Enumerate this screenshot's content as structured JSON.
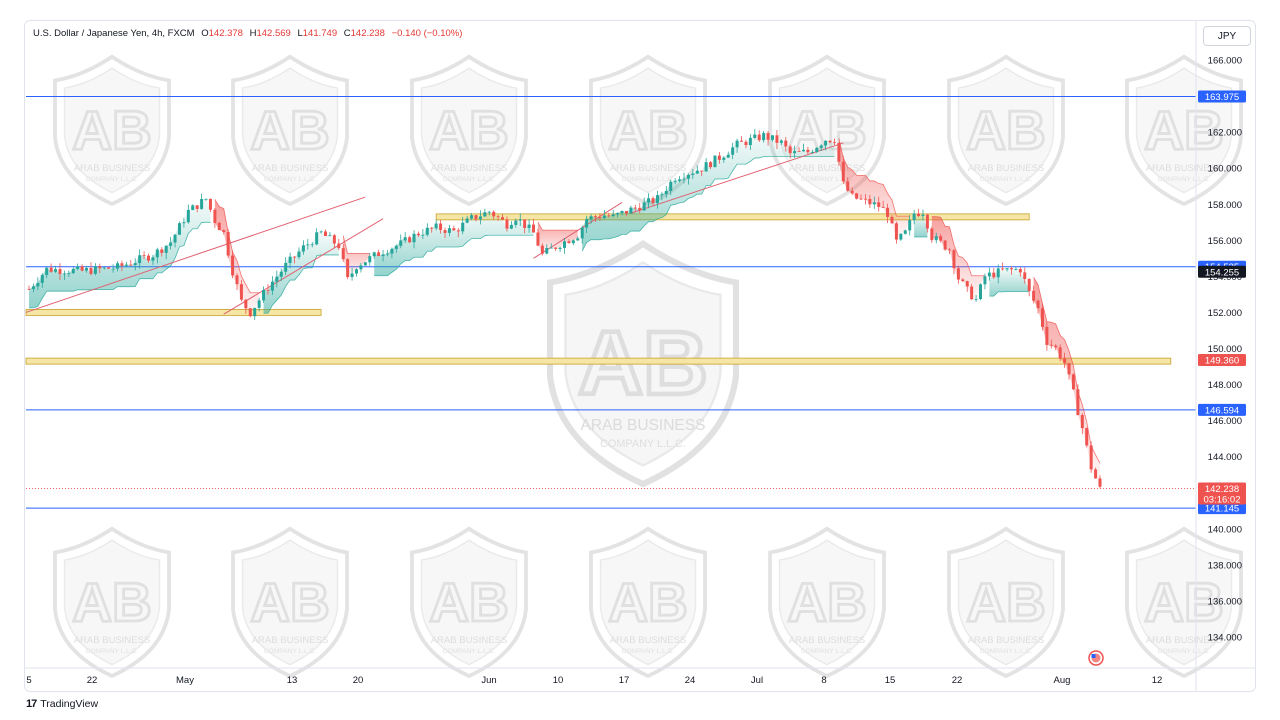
{
  "header": {
    "symbol_label": "U.S. Dollar / Japanese Yen, 4h, FXCM",
    "open_key": "O",
    "open": "142.378",
    "high_key": "H",
    "high": "142.569",
    "low_key": "L",
    "low": "141.749",
    "close_key": "C",
    "close": "142.238",
    "change": "−0.140 (−0.10%)"
  },
  "currency_button": "JPY",
  "countdown": "03:16:02",
  "branding": {
    "logo": "17",
    "text": "TradingView"
  },
  "watermark": {
    "line1": "ARAB BUSINESS",
    "line2": "COMPANY L.L.C."
  },
  "colors": {
    "bull": "#26a69a",
    "bear": "#ef5350",
    "blue_line": "#2962ff",
    "zone_fill": "#f5e6a6",
    "zone_border": "#c9a227",
    "channel": "#e06070"
  },
  "chart_data": {
    "type": "candlestick",
    "title": "U.S. Dollar / Japanese Yen, 4h, FXCM",
    "yaxis": {
      "min": 132.8,
      "max": 167.0,
      "ticks": [
        "166.000",
        "164.000",
        "162.000",
        "160.000",
        "158.000",
        "156.000",
        "154.000",
        "152.000",
        "150.000",
        "148.000",
        "146.000",
        "144.000",
        "142.000",
        "140.000",
        "138.000",
        "136.000",
        "134.000"
      ]
    },
    "xaxis": {
      "ticks": [
        "5",
        "22",
        "May",
        "13",
        "20",
        "Jun",
        "10",
        "17",
        "24",
        "Jul",
        "8",
        "15",
        "22",
        "Aug",
        "12"
      ]
    },
    "price_path": [
      [
        0,
        153.3
      ],
      [
        2,
        154.4
      ],
      [
        6,
        154.3
      ],
      [
        10,
        154.5
      ],
      [
        14,
        155.2
      ],
      [
        16,
        155.9
      ],
      [
        18,
        157.6
      ],
      [
        20,
        158.3
      ],
      [
        21,
        157.1
      ],
      [
        22,
        156.4
      ],
      [
        23,
        154.3
      ],
      [
        24,
        152.6
      ],
      [
        25,
        152.0
      ],
      [
        27,
        153.4
      ],
      [
        29,
        154.6
      ],
      [
        31,
        155.6
      ],
      [
        33,
        156.4
      ],
      [
        35,
        155.7
      ],
      [
        36,
        153.8
      ],
      [
        37,
        154.6
      ],
      [
        40,
        155.4
      ],
      [
        42,
        155.8
      ],
      [
        44,
        156.4
      ],
      [
        46,
        156.7
      ],
      [
        48,
        156.5
      ],
      [
        50,
        157.2
      ],
      [
        52,
        157.6
      ],
      [
        54,
        156.9
      ],
      [
        55,
        157.3
      ],
      [
        57,
        156.4
      ],
      [
        58,
        155.2
      ],
      [
        60,
        155.8
      ],
      [
        62,
        156.3
      ],
      [
        63,
        157.2
      ],
      [
        65,
        157.4
      ],
      [
        66,
        157.3
      ],
      [
        69,
        157.9
      ],
      [
        71,
        158.3
      ],
      [
        73,
        159.5
      ],
      [
        76,
        160.0
      ],
      [
        78,
        160.6
      ],
      [
        80,
        161.3
      ],
      [
        83,
        161.8
      ],
      [
        85,
        161.4
      ],
      [
        86,
        160.8
      ],
      [
        88,
        160.9
      ],
      [
        90,
        161.6
      ],
      [
        91,
        161.6
      ],
      [
        92,
        159.1
      ],
      [
        93,
        158.4
      ],
      [
        96,
        157.9
      ],
      [
        97,
        157.5
      ],
      [
        98,
        155.9
      ],
      [
        99,
        156.4
      ],
      [
        100,
        157.5
      ],
      [
        101,
        157.6
      ],
      [
        102,
        156.2
      ],
      [
        104,
        155.5
      ],
      [
        105,
        153.9
      ],
      [
        106,
        153.2
      ],
      [
        107,
        152.7
      ],
      [
        108,
        154.0
      ],
      [
        110,
        154.3
      ],
      [
        112,
        154.4
      ],
      [
        113,
        153.1
      ],
      [
        114,
        152.2
      ],
      [
        115,
        150.4
      ],
      [
        116,
        150.0
      ],
      [
        117,
        149.2
      ],
      [
        118,
        147.5
      ],
      [
        119,
        145.6
      ],
      [
        120,
        143.4
      ],
      [
        121,
        142.2
      ]
    ],
    "horizontal_lines": [
      {
        "price": 163.975,
        "label": "163.975",
        "color": "#2962ff"
      },
      {
        "price": 154.535,
        "label": "154.535",
        "color": "#2962ff"
      },
      {
        "price": 146.594,
        "label": "146.594",
        "color": "#2962ff"
      },
      {
        "price": 141.145,
        "label": "141.145",
        "color": "#2962ff"
      }
    ],
    "price_labels": [
      {
        "price": 154.255,
        "label": "154.255",
        "bg": "#131722"
      },
      {
        "price": 149.36,
        "label": "149.360",
        "bg": "#ef5350"
      },
      {
        "price": 142.238,
        "label": "142.238",
        "bg": "#ef5350"
      }
    ],
    "last_price": 142.238,
    "zones": [
      {
        "x0": 0,
        "x1": 33,
        "price": 152.0
      },
      {
        "x0": 46,
        "x1": 113,
        "price": 157.3
      },
      {
        "x0": 0,
        "x1": 129,
        "price": 149.3
      }
    ],
    "channel_lines": [
      {
        "x0": 0,
        "p0": 152.0,
        "x1": 38,
        "p1": 158.4
      },
      {
        "x0": 22,
        "p0": 151.9,
        "x1": 40,
        "p1": 157.2
      },
      {
        "x0": 57,
        "p0": 155.0,
        "x1": 67,
        "p1": 158.1
      },
      {
        "x0": 68,
        "p0": 157.5,
        "x1": 92,
        "p1": 161.4
      }
    ],
    "grid": false,
    "legend": "top-left"
  }
}
